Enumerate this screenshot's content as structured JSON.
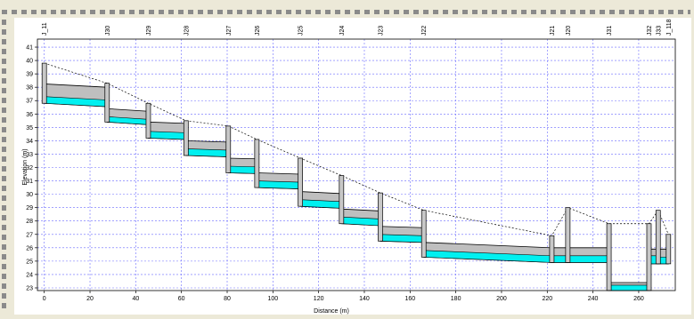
{
  "chart_data": {
    "type": "line",
    "xlabel": "Distance (m)",
    "ylabel": "Elevation (m)",
    "xlim": [
      -3,
      276
    ],
    "ylim": [
      22.8,
      41.6
    ],
    "xticks": [
      0,
      20,
      40,
      60,
      80,
      100,
      120,
      140,
      160,
      180,
      200,
      220,
      240,
      260
    ],
    "yticks": [
      23,
      24,
      25,
      26,
      27,
      28,
      29,
      30,
      31,
      32,
      33,
      34,
      35,
      36,
      37,
      38,
      39,
      40,
      41
    ],
    "grid": true,
    "colors": {
      "grid": "#6b6bff",
      "pipe_fill": "#bfbfbf",
      "water_fill": "#00f0f0",
      "ground_line": "#000000",
      "structure_line": "#000000"
    },
    "nodes": [
      {
        "label": "J_11",
        "x": 0,
        "top": 39.8,
        "bottom": 36.8
      },
      {
        "label": "J30",
        "x": 27.5,
        "top": 38.3,
        "bottom": 35.4
      },
      {
        "label": "J29",
        "x": 45.5,
        "top": 36.8,
        "bottom": 34.2
      },
      {
        "label": "J28",
        "x": 62,
        "top": 35.5,
        "bottom": 32.9
      },
      {
        "label": "J27",
        "x": 80.5,
        "top": 35.1,
        "bottom": 31.6
      },
      {
        "label": "J26",
        "x": 93,
        "top": 34.1,
        "bottom": 30.5
      },
      {
        "label": "J25",
        "x": 112,
        "top": 32.7,
        "bottom": 29.1
      },
      {
        "label": "J24",
        "x": 130,
        "top": 31.4,
        "bottom": 27.8
      },
      {
        "label": "J23",
        "x": 147,
        "top": 30.1,
        "bottom": 26.5
      },
      {
        "label": "J22",
        "x": 166,
        "top": 28.8,
        "bottom": 25.3
      },
      {
        "label": "J21",
        "x": 222,
        "top": 26.9,
        "bottom": 24.9
      },
      {
        "label": "J20",
        "x": 229,
        "top": 29.0,
        "bottom": 24.9
      },
      {
        "label": "J31",
        "x": 247,
        "top": 27.8,
        "bottom": 22.8
      },
      {
        "label": "J32",
        "x": 264.5,
        "top": 27.8,
        "bottom": 22.8
      },
      {
        "label": "J33",
        "x": 268.5,
        "top": 28.8,
        "bottom": 24.8
      },
      {
        "label": "J_118",
        "x": 273,
        "top": 27.0,
        "bottom": 24.8
      }
    ],
    "conduits": [
      {
        "x1": 0,
        "x2": 27.5,
        "inv1": 36.8,
        "inv2": 36.55,
        "depth": 1.45,
        "water": 0.5
      },
      {
        "x1": 27.5,
        "x2": 45.5,
        "inv1": 35.4,
        "inv2": 35.2,
        "depth": 1.0,
        "water": 0.4
      },
      {
        "x1": 45.5,
        "x2": 62,
        "inv1": 34.2,
        "inv2": 34.1,
        "depth": 1.2,
        "water": 0.5
      },
      {
        "x1": 62,
        "x2": 80.5,
        "inv1": 32.9,
        "inv2": 32.8,
        "depth": 1.1,
        "water": 0.5
      },
      {
        "x1": 80.5,
        "x2": 93,
        "inv1": 31.6,
        "inv2": 31.55,
        "depth": 1.1,
        "water": 0.5
      },
      {
        "x1": 93,
        "x2": 112,
        "inv1": 30.5,
        "inv2": 30.4,
        "depth": 1.1,
        "water": 0.5
      },
      {
        "x1": 112,
        "x2": 130,
        "inv1": 29.1,
        "inv2": 28.95,
        "depth": 1.1,
        "water": 0.5
      },
      {
        "x1": 130,
        "x2": 147,
        "inv1": 27.8,
        "inv2": 27.65,
        "depth": 1.1,
        "water": 0.5
      },
      {
        "x1": 147,
        "x2": 166,
        "inv1": 26.5,
        "inv2": 26.4,
        "depth": 1.1,
        "water": 0.5
      },
      {
        "x1": 166,
        "x2": 222,
        "inv1": 25.3,
        "inv2": 24.9,
        "depth": 1.1,
        "water": 0.5
      },
      {
        "x1": 222,
        "x2": 229,
        "inv1": 24.9,
        "inv2": 24.9,
        "depth": 1.1,
        "water": 0.5
      },
      {
        "x1": 229,
        "x2": 247,
        "inv1": 24.9,
        "inv2": 24.9,
        "depth": 1.1,
        "water": 0.5
      },
      {
        "x1": 247,
        "x2": 264.5,
        "inv1": 22.8,
        "inv2": 22.8,
        "depth": 0.6,
        "water": 0.4
      },
      {
        "x1": 264.5,
        "x2": 268.5,
        "inv1": 24.8,
        "inv2": 24.8,
        "depth": 1.1,
        "water": 0.6
      },
      {
        "x1": 268.5,
        "x2": 273,
        "inv1": 24.8,
        "inv2": 24.8,
        "depth": 1.1,
        "water": 0.5
      }
    ]
  }
}
